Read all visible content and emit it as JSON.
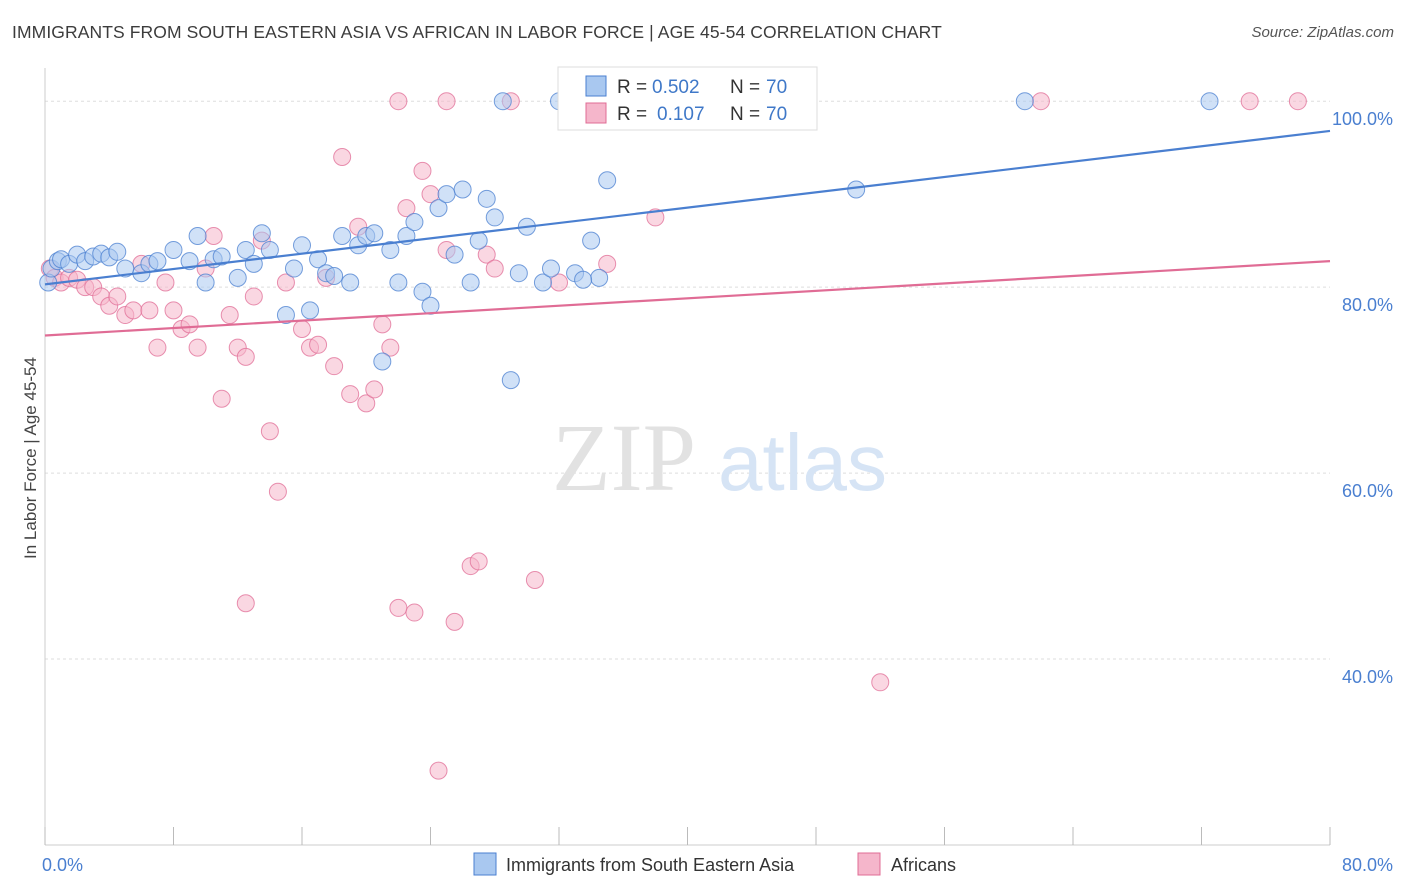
{
  "header": {
    "title": "IMMIGRANTS FROM SOUTH EASTERN ASIA VS AFRICAN IN LABOR FORCE | AGE 45-54 CORRELATION CHART",
    "source": "Source: ZipAtlas.com"
  },
  "watermark": {
    "zip": "ZIP",
    "atlas": "atlas"
  },
  "chart_data": {
    "type": "scatter",
    "ylabel": "In Labor Force | Age 45-54",
    "xlim": [
      0,
      80
    ],
    "ylim": [
      20,
      104
    ],
    "x_tick_labels": [
      {
        "value": 0,
        "label": "0.0%"
      },
      {
        "value": 80,
        "label": "80.0%"
      }
    ],
    "x_minor_ticks": [
      0,
      8,
      16,
      24,
      32,
      40,
      48,
      56,
      64,
      72,
      80
    ],
    "y_tick_labels": [
      {
        "value": 40,
        "label": "40.0%"
      },
      {
        "value": 60,
        "label": "60.0%"
      },
      {
        "value": 80,
        "label": "80.0%"
      },
      {
        "value": 100,
        "label": "100.0%"
      }
    ],
    "grid": true,
    "legend_placement": "top-center",
    "legend": [
      {
        "r_label": "R =",
        "r_value": "0.502",
        "n_label": "N =",
        "n_value": "70"
      },
      {
        "r_label": "R =",
        "r_value": "0.107",
        "n_label": "N =",
        "n_value": "70"
      }
    ],
    "series": [
      {
        "name": "Immigrants from South Eastern Asia",
        "color": "#4a7fd0",
        "fill": "#a9c8f0",
        "trend": {
          "x1": 0,
          "y1": 80.3,
          "x2": 80,
          "y2": 96.8
        },
        "points": [
          [
            0.2,
            80.5
          ],
          [
            0.4,
            82.0
          ],
          [
            0.8,
            82.8
          ],
          [
            1.0,
            83.0
          ],
          [
            1.5,
            82.5
          ],
          [
            2.0,
            83.5
          ],
          [
            2.5,
            82.8
          ],
          [
            3.0,
            83.3
          ],
          [
            3.5,
            83.6
          ],
          [
            4.0,
            83.2
          ],
          [
            4.5,
            83.8
          ],
          [
            5.0,
            82.0
          ],
          [
            6.0,
            81.5
          ],
          [
            6.5,
            82.5
          ],
          [
            7.0,
            82.8
          ],
          [
            8.0,
            84.0
          ],
          [
            9.0,
            82.8
          ],
          [
            9.5,
            85.5
          ],
          [
            10.0,
            80.5
          ],
          [
            10.5,
            83.0
          ],
          [
            11.0,
            83.3
          ],
          [
            12.0,
            81.0
          ],
          [
            12.5,
            84.0
          ],
          [
            13.0,
            82.5
          ],
          [
            13.5,
            85.8
          ],
          [
            14.0,
            84.0
          ],
          [
            15.0,
            77.0
          ],
          [
            15.5,
            82.0
          ],
          [
            16.0,
            84.5
          ],
          [
            16.5,
            77.5
          ],
          [
            17.0,
            83.0
          ],
          [
            17.5,
            81.5
          ],
          [
            18.0,
            81.2
          ],
          [
            18.5,
            85.5
          ],
          [
            19.0,
            80.5
          ],
          [
            19.5,
            84.5
          ],
          [
            20.0,
            85.5
          ],
          [
            20.5,
            85.8
          ],
          [
            21.0,
            72.0
          ],
          [
            21.5,
            84.0
          ],
          [
            22.0,
            80.5
          ],
          [
            22.5,
            85.5
          ],
          [
            23.0,
            87.0
          ],
          [
            23.5,
            79.5
          ],
          [
            24.0,
            78.0
          ],
          [
            24.5,
            88.5
          ],
          [
            25.0,
            90.0
          ],
          [
            25.5,
            83.5
          ],
          [
            26.0,
            90.5
          ],
          [
            26.5,
            80.5
          ],
          [
            27.0,
            85.0
          ],
          [
            27.5,
            89.5
          ],
          [
            28.0,
            87.5
          ],
          [
            28.5,
            100.0
          ],
          [
            29.0,
            70.0
          ],
          [
            29.5,
            81.5
          ],
          [
            30.0,
            86.5
          ],
          [
            31.0,
            80.5
          ],
          [
            31.5,
            82.0
          ],
          [
            32.0,
            100.0
          ],
          [
            33.0,
            81.5
          ],
          [
            34.0,
            85.0
          ],
          [
            34.5,
            81.0
          ],
          [
            35.0,
            91.5
          ],
          [
            37.0,
            100.0
          ],
          [
            40.0,
            100.0
          ],
          [
            50.5,
            90.5
          ],
          [
            61.0,
            100.0
          ],
          [
            72.5,
            100.0
          ],
          [
            33.5,
            80.8
          ]
        ]
      },
      {
        "name": "Africans",
        "color": "#e06c95",
        "fill": "#f5b6cb",
        "trend": {
          "x1": 0,
          "y1": 74.8,
          "x2": 80,
          "y2": 82.8
        },
        "points": [
          [
            0.3,
            82.0
          ],
          [
            0.6,
            81.0
          ],
          [
            1.0,
            80.5
          ],
          [
            1.5,
            81.0
          ],
          [
            2.0,
            80.8
          ],
          [
            2.5,
            80.0
          ],
          [
            3.0,
            80.0
          ],
          [
            3.5,
            79.0
          ],
          [
            4.0,
            78.0
          ],
          [
            4.5,
            79.0
          ],
          [
            5.0,
            77.0
          ],
          [
            5.5,
            77.5
          ],
          [
            6.0,
            82.5
          ],
          [
            6.5,
            77.5
          ],
          [
            7.0,
            73.5
          ],
          [
            7.5,
            80.5
          ],
          [
            8.0,
            77.5
          ],
          [
            8.5,
            75.5
          ],
          [
            9.0,
            76.0
          ],
          [
            9.5,
            73.5
          ],
          [
            10.0,
            82.0
          ],
          [
            10.5,
            85.5
          ],
          [
            11.0,
            68.0
          ],
          [
            11.5,
            77.0
          ],
          [
            12.0,
            73.5
          ],
          [
            12.5,
            72.5
          ],
          [
            13.0,
            79.0
          ],
          [
            13.5,
            85.0
          ],
          [
            14.0,
            64.5
          ],
          [
            14.5,
            58.0
          ],
          [
            15.0,
            80.5
          ],
          [
            16.0,
            75.5
          ],
          [
            16.5,
            73.5
          ],
          [
            17.0,
            73.8
          ],
          [
            17.5,
            81.0
          ],
          [
            18.0,
            71.5
          ],
          [
            18.5,
            94.0
          ],
          [
            19.0,
            68.5
          ],
          [
            19.5,
            86.5
          ],
          [
            20.0,
            67.5
          ],
          [
            20.5,
            69.0
          ],
          [
            21.0,
            76.0
          ],
          [
            21.5,
            73.5
          ],
          [
            22.0,
            45.5
          ],
          [
            22.5,
            88.5
          ],
          [
            23.0,
            45.0
          ],
          [
            23.5,
            92.5
          ],
          [
            24.0,
            90.0
          ],
          [
            24.5,
            28.0
          ],
          [
            25.0,
            84.0
          ],
          [
            25.5,
            44.0
          ],
          [
            26.5,
            50.0
          ],
          [
            27.0,
            50.5
          ],
          [
            27.5,
            83.5
          ],
          [
            28.0,
            82.0
          ],
          [
            29.0,
            100.0
          ],
          [
            30.5,
            48.5
          ],
          [
            32.0,
            80.5
          ],
          [
            34.0,
            100.0
          ],
          [
            35.0,
            82.5
          ],
          [
            38.0,
            87.5
          ],
          [
            43.0,
            100.0
          ],
          [
            44.5,
            100.0
          ],
          [
            52.0,
            37.5
          ],
          [
            62.0,
            100.0
          ],
          [
            75.0,
            100.0
          ],
          [
            78.0,
            100.0
          ],
          [
            22.0,
            100.0
          ],
          [
            25.0,
            100.0
          ],
          [
            12.5,
            46.0
          ]
        ]
      }
    ]
  }
}
